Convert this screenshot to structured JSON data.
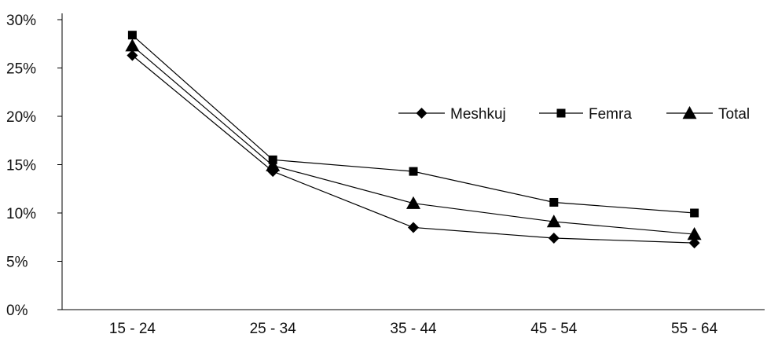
{
  "chart_data": {
    "type": "line",
    "categories": [
      "15 - 24",
      "25 - 34",
      "35 - 44",
      "45 - 54",
      "55 - 64"
    ],
    "y_ticks": [
      "0%",
      "5%",
      "10%",
      "15%",
      "20%",
      "25%",
      "30%"
    ],
    "ylim": [
      0,
      30
    ],
    "grid": false,
    "legend_position": "right, upper third",
    "series": [
      {
        "name": "Meshkuj",
        "marker": "diamond",
        "values": [
          26.3,
          14.3,
          8.5,
          7.4,
          6.9
        ]
      },
      {
        "name": "Femra",
        "marker": "square",
        "values": [
          28.4,
          15.5,
          14.3,
          11.1,
          10.0
        ]
      },
      {
        "name": "Total",
        "marker": "triangle",
        "values": [
          27.3,
          14.9,
          11.0,
          9.1,
          7.8
        ]
      }
    ],
    "line_color": "#000000"
  }
}
